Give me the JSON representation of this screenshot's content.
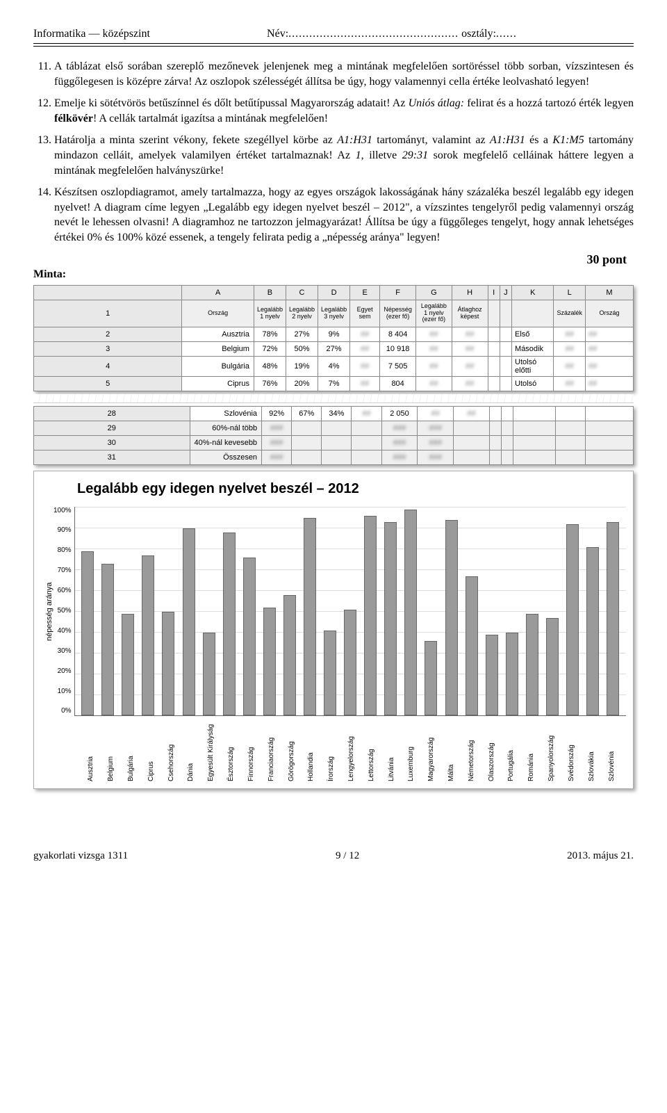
{
  "header": {
    "left": "Informatika — középszint",
    "nev": "Név:",
    "osztaly": " osztály:"
  },
  "tasks": {
    "start": 11,
    "items": [
      {
        "text_parts": [
          {
            "t": "A táblázat első sorában szereplő mezőnevek jelenjenek meg a mintának megfelelően sortöréssel több sorban, vízszintesen és függőlegesen is középre zárva! Az oszlopok szélességét állítsa be úgy, hogy valamennyi cella értéke leolvasható legyen!"
          }
        ]
      },
      {
        "text_parts": [
          {
            "t": "Emelje ki sötétvörös betűszínnel és dőlt betűtípussal Magyarország adatait! Az "
          },
          {
            "t": "Uniós átlag:",
            "style": "italic"
          },
          {
            "t": " felirat és a hozzá tartozó érték legyen "
          },
          {
            "t": "félkövér",
            "style": "bold"
          },
          {
            "t": "! A cellák tartalmát igazítsa a mintának megfelelően!"
          }
        ]
      },
      {
        "text_parts": [
          {
            "t": "Határolja a minta szerint vékony, fekete szegéllyel körbe az "
          },
          {
            "t": "A1:H31",
            "style": "italic"
          },
          {
            "t": " tartományt, valamint az "
          },
          {
            "t": "A1:H31",
            "style": "italic"
          },
          {
            "t": " és a "
          },
          {
            "t": "K1:M5",
            "style": "italic"
          },
          {
            "t": " tartomány mindazon celláit, amelyek valamilyen értéket tartalmaznak! Az "
          },
          {
            "t": "1",
            "style": "italic"
          },
          {
            "t": ", illetve "
          },
          {
            "t": "29:31",
            "style": "italic"
          },
          {
            "t": " sorok megfelelő celláinak háttere legyen a mintának megfelelően halványszürke!"
          }
        ]
      },
      {
        "text_parts": [
          {
            "t": "Készítsen oszlopdiagramot, amely tartalmazza, hogy az egyes országok lakosságának hány százaléka beszél legalább egy idegen nyelvet! A diagram címe legyen „Legalább egy idegen nyelvet beszél – 2012\", a vízszintes tengelyről pedig valamennyi ország nevét le lehessen olvasni! A diagramhoz ne tartozzon jelmagyarázat! Állítsa be úgy a függőleges tengelyt, hogy annak lehetséges értékei 0% és 100% közé essenek, a tengely felirata pedig a „népesség aránya\" legyen!"
          }
        ]
      }
    ]
  },
  "points_label": "30 pont",
  "minta_label": "Minta:",
  "sheet1": {
    "col_letters": [
      "A",
      "B",
      "C",
      "D",
      "E",
      "F",
      "G",
      "H",
      "I",
      "J",
      "K",
      "L",
      "M"
    ],
    "headers": [
      "Ország",
      "Legalább 1 nyelv",
      "Legalább 2 nyelv",
      "Legalább 3 nyelv",
      "Egyet sem",
      "Népesség (ezer fő)",
      "Legalább 1 nyelv (ezer fő)",
      "Átlaghoz képest",
      "",
      "",
      "",
      "Százalék",
      "Ország"
    ],
    "rows": [
      {
        "n": "2",
        "cells": [
          "Ausztria",
          "78%",
          "27%",
          "9%",
          "",
          "8 404",
          "",
          "",
          "",
          "",
          "Első",
          "",
          ""
        ]
      },
      {
        "n": "3",
        "cells": [
          "Belgium",
          "72%",
          "50%",
          "27%",
          "",
          "10 918",
          "",
          "",
          "",
          "",
          "Második",
          "",
          ""
        ]
      },
      {
        "n": "4",
        "cells": [
          "Bulgária",
          "48%",
          "19%",
          "4%",
          "",
          "7 505",
          "",
          "",
          "",
          "",
          "Utolsó előtti",
          "",
          ""
        ]
      },
      {
        "n": "5",
        "cells": [
          "Ciprus",
          "76%",
          "20%",
          "7%",
          "",
          "804",
          "",
          "",
          "",
          "",
          "Utolsó",
          "",
          ""
        ]
      }
    ]
  },
  "sheet2": {
    "rows": [
      {
        "n": "28",
        "cells": [
          "Szlovénia",
          "92%",
          "67%",
          "34%",
          "",
          "2 050",
          "",
          "",
          "",
          "",
          "",
          "",
          ""
        ]
      },
      {
        "n": "29",
        "shaded": true,
        "cells": [
          "60%-nál több",
          "",
          "",
          "",
          "",
          "",
          "",
          "",
          "",
          "",
          "",
          "",
          ""
        ]
      },
      {
        "n": "30",
        "shaded": true,
        "cells": [
          "40%-nál kevesebb",
          "",
          "",
          "",
          "",
          "",
          "",
          "",
          "",
          "",
          "",
          "",
          ""
        ]
      },
      {
        "n": "31",
        "shaded": true,
        "cells": [
          "Összesen",
          "",
          "",
          "",
          "",
          "",
          "",
          "",
          "",
          "",
          "",
          "",
          ""
        ]
      }
    ]
  },
  "chart": {
    "title": "Legalább egy idegen nyelvet beszél – 2012",
    "ylabel": "népesség aránya",
    "ylim": [
      0,
      100
    ],
    "ytick_step": 10,
    "yticks": [
      "100%",
      "90%",
      "80%",
      "70%",
      "60%",
      "50%",
      "40%",
      "30%",
      "20%",
      "10%",
      "0%"
    ],
    "bar_color": "#9a9a9a",
    "bar_border": "#666666",
    "grid_color": "#dddddd",
    "countries": [
      "Ausztria",
      "Belgium",
      "Bulgária",
      "Ciprus",
      "Csehország",
      "Dánia",
      "Egyesült Királyság",
      "Észtország",
      "Finnország",
      "Franciaország",
      "Görögország",
      "Hollandia",
      "Írország",
      "Lengyelország",
      "Lettország",
      "Litvánia",
      "Luxemburg",
      "Magyarország",
      "Málta",
      "Németország",
      "Olaszország",
      "Portugália",
      "Románia",
      "Spanyolország",
      "Svédország",
      "Szlovákia",
      "Szlovénia"
    ],
    "values": [
      78,
      72,
      48,
      76,
      49,
      89,
      39,
      87,
      75,
      51,
      57,
      94,
      40,
      50,
      95,
      92,
      98,
      35,
      93,
      66,
      38,
      39,
      48,
      46,
      91,
      80,
      92
    ]
  },
  "footer": {
    "left": "gyakorlati vizsga 1311",
    "center": "9 / 12",
    "right": "2013. május 21."
  }
}
